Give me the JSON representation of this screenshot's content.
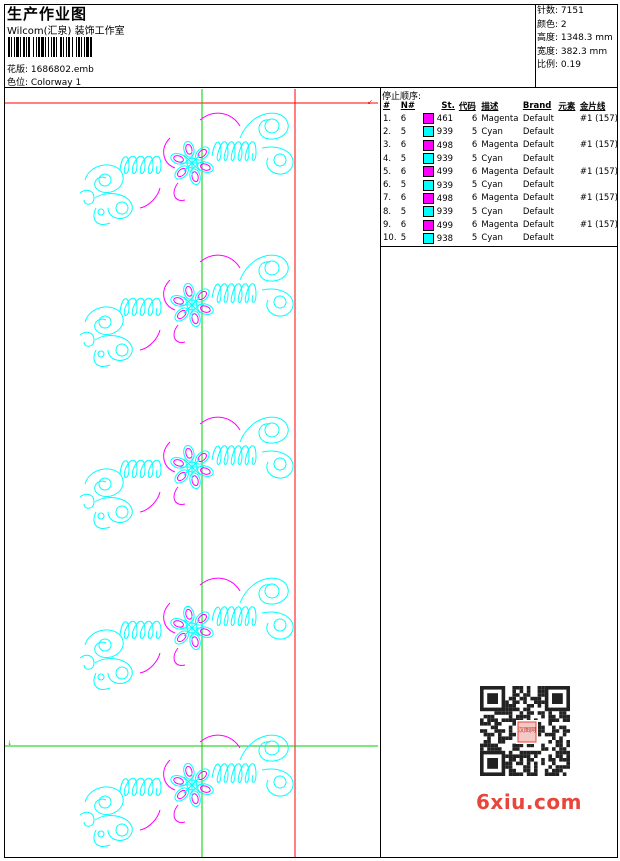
{
  "header": {
    "title": "生产作业图",
    "company": "Wilcom(汇泉) 装饰工作室",
    "design_file": "花版: 1686802.emb",
    "colorway": "色位: Colorway 1"
  },
  "stats": [
    {
      "label": "针数:",
      "value": "7151"
    },
    {
      "label": "颜色:",
      "value": "2"
    },
    {
      "label": "高度:",
      "value": "1348.3 mm"
    },
    {
      "label": "宽度:",
      "value": "382.3 mm"
    },
    {
      "label": "比例:",
      "value": "0.19"
    }
  ],
  "stop_sequence": {
    "heading": "停止顺序:",
    "columns": [
      "#",
      "N#",
      "St.",
      "代码",
      "描述",
      "Brand",
      "元素",
      "金片线"
    ],
    "rows": [
      {
        "idx": "1.",
        "n": "6",
        "color": "#ff00ff",
        "st": "461",
        "code": "6",
        "desc": "Magenta",
        "brand": "Default",
        "elem": "",
        "seq": "#1 (157)"
      },
      {
        "idx": "2.",
        "n": "5",
        "color": "#00ffff",
        "st": "939",
        "code": "5",
        "desc": "Cyan",
        "brand": "Default",
        "elem": "",
        "seq": ""
      },
      {
        "idx": "3.",
        "n": "6",
        "color": "#ff00ff",
        "st": "498",
        "code": "6",
        "desc": "Magenta",
        "brand": "Default",
        "elem": "",
        "seq": "#1 (157)"
      },
      {
        "idx": "4.",
        "n": "5",
        "color": "#00ffff",
        "st": "939",
        "code": "5",
        "desc": "Cyan",
        "brand": "Default",
        "elem": "",
        "seq": ""
      },
      {
        "idx": "5.",
        "n": "6",
        "color": "#ff00ff",
        "st": "499",
        "code": "6",
        "desc": "Magenta",
        "brand": "Default",
        "elem": "",
        "seq": "#1 (157)"
      },
      {
        "idx": "6.",
        "n": "5",
        "color": "#00ffff",
        "st": "939",
        "code": "5",
        "desc": "Cyan",
        "brand": "Default",
        "elem": "",
        "seq": ""
      },
      {
        "idx": "7.",
        "n": "6",
        "color": "#ff00ff",
        "st": "498",
        "code": "6",
        "desc": "Magenta",
        "brand": "Default",
        "elem": "",
        "seq": "#1 (157)"
      },
      {
        "idx": "8.",
        "n": "5",
        "color": "#00ffff",
        "st": "939",
        "code": "5",
        "desc": "Cyan",
        "brand": "Default",
        "elem": "",
        "seq": ""
      },
      {
        "idx": "9.",
        "n": "6",
        "color": "#ff00ff",
        "st": "499",
        "code": "6",
        "desc": "Magenta",
        "brand": "Default",
        "elem": "",
        "seq": "#1 (157)"
      },
      {
        "idx": "10.",
        "n": "5",
        "color": "#00ffff",
        "st": "938",
        "code": "5",
        "desc": "Cyan",
        "brand": "Default",
        "elem": "",
        "seq": ""
      }
    ]
  },
  "watermark": {
    "brand": "6xiu.com",
    "qr_logo_text": "汉图网"
  },
  "colors": {
    "magenta": "#ff00ff",
    "cyan": "#00ffff",
    "guide_green": "#00cc00",
    "guide_red": "#ff0000"
  }
}
